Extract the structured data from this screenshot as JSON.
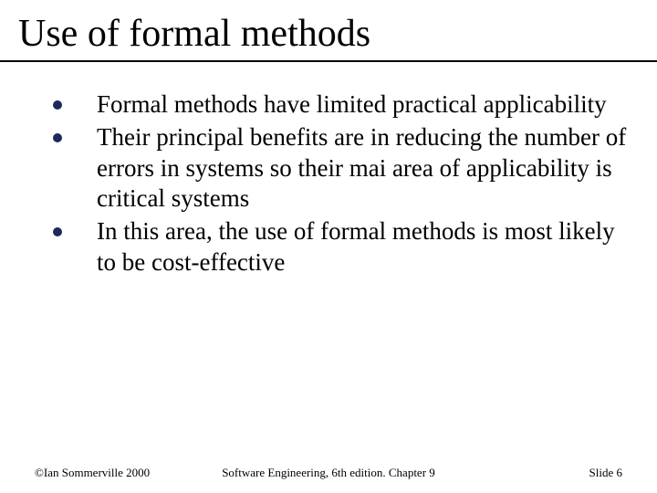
{
  "title": "Use of formal methods",
  "title_fontsize": 42,
  "title_color": "#000000",
  "rule_color": "#000000",
  "bullet_color": "#1b2a5a",
  "body_fontsize": 27,
  "body_text_color": "#000000",
  "background_color": "#ffffff",
  "bullets": [
    "Formal methods have limited practical applicability",
    "Their principal benefits are in reducing the number of errors in systems so their mai area of applicability is critical systems",
    "In this area, the use of formal methods is most likely to be cost-effective"
  ],
  "footer": {
    "left": "©Ian Sommerville 2000",
    "center": "Software Engineering, 6th edition. Chapter 9",
    "right": "Slide 6",
    "fontsize": 13,
    "color": "#000000"
  }
}
